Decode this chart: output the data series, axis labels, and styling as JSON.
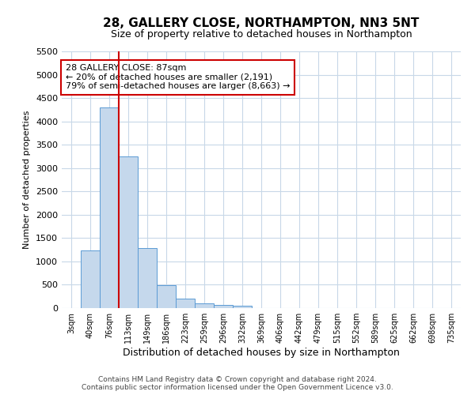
{
  "title": "28, GALLERY CLOSE, NORTHAMPTON, NN3 5NT",
  "subtitle": "Size of property relative to detached houses in Northampton",
  "xlabel": "Distribution of detached houses by size in Northampton",
  "ylabel": "Number of detached properties",
  "footer_line1": "Contains HM Land Registry data © Crown copyright and database right 2024.",
  "footer_line2": "Contains public sector information licensed under the Open Government Licence v3.0.",
  "annotation_title": "28 GALLERY CLOSE: 87sqm",
  "annotation_line1": "← 20% of detached houses are smaller (2,191)",
  "annotation_line2": "79% of semi-detached houses are larger (8,663) →",
  "bar_color": "#c5d8ec",
  "bar_edge_color": "#5b9bd5",
  "red_line_color": "#cc0000",
  "annotation_box_color": "#cc0000",
  "categories": [
    "3sqm",
    "40sqm",
    "76sqm",
    "113sqm",
    "149sqm",
    "186sqm",
    "223sqm",
    "259sqm",
    "296sqm",
    "332sqm",
    "369sqm",
    "406sqm",
    "442sqm",
    "479sqm",
    "515sqm",
    "552sqm",
    "589sqm",
    "625sqm",
    "662sqm",
    "698sqm",
    "735sqm"
  ],
  "values": [
    0,
    1230,
    4300,
    3250,
    1280,
    490,
    210,
    100,
    70,
    50,
    0,
    0,
    0,
    0,
    0,
    0,
    0,
    0,
    0,
    0,
    0
  ],
  "red_line_x": 2.5,
  "ylim": [
    0,
    5500
  ],
  "yticks": [
    0,
    500,
    1000,
    1500,
    2000,
    2500,
    3000,
    3500,
    4000,
    4500,
    5000,
    5500
  ],
  "background_color": "#ffffff",
  "grid_color": "#c8d8e8"
}
